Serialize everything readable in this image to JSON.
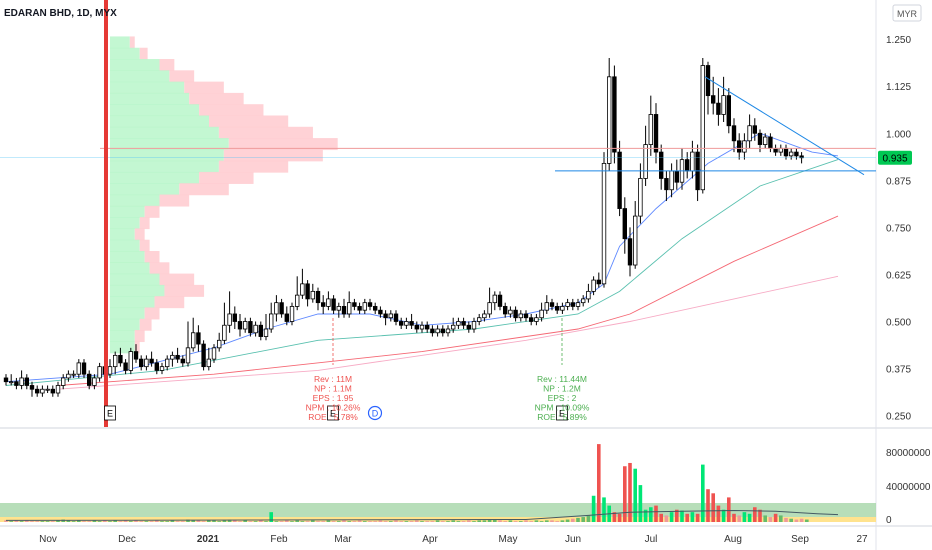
{
  "chart_data": {
    "type": "candlestick",
    "title": "EDARAN BHD, 1D, MYX",
    "currency": "MYR",
    "last_price": "0.935",
    "y_axis": {
      "ticks": [
        "1.250",
        "1.125",
        "1.000",
        "0.875",
        "0.750",
        "0.625",
        "0.500",
        "0.375",
        "0.250"
      ],
      "range": [
        0.225,
        1.285
      ]
    },
    "x_axis": {
      "ticks": [
        "Nov",
        "Dec",
        "2021",
        "Feb",
        "Mar",
        "Apr",
        "May",
        "Jun",
        "Jul",
        "Aug",
        "Sep",
        "27"
      ]
    },
    "volume_axis": {
      "ticks": [
        "80000000",
        "40000000",
        "0"
      ]
    },
    "candles": [
      [
        0.35,
        0.34,
        0.36,
        0.33
      ],
      [
        0.34,
        0.34,
        0.36,
        0.33
      ],
      [
        0.34,
        0.33,
        0.35,
        0.32
      ],
      [
        0.33,
        0.35,
        0.37,
        0.32
      ],
      [
        0.35,
        0.33,
        0.36,
        0.32
      ],
      [
        0.33,
        0.32,
        0.34,
        0.3
      ],
      [
        0.32,
        0.31,
        0.33,
        0.3
      ],
      [
        0.31,
        0.32,
        0.33,
        0.3
      ],
      [
        0.32,
        0.32,
        0.33,
        0.31
      ],
      [
        0.32,
        0.31,
        0.33,
        0.3
      ],
      [
        0.31,
        0.33,
        0.34,
        0.3
      ],
      [
        0.33,
        0.35,
        0.36,
        0.32
      ],
      [
        0.35,
        0.36,
        0.37,
        0.34
      ],
      [
        0.36,
        0.36,
        0.37,
        0.35
      ],
      [
        0.36,
        0.39,
        0.4,
        0.35
      ],
      [
        0.39,
        0.36,
        0.4,
        0.35
      ],
      [
        0.36,
        0.33,
        0.37,
        0.32
      ],
      [
        0.33,
        0.35,
        0.36,
        0.32
      ],
      [
        0.35,
        0.38,
        0.39,
        0.34
      ],
      [
        0.38,
        0.36,
        0.4,
        0.35
      ],
      [
        0.36,
        0.38,
        0.4,
        0.35
      ],
      [
        0.38,
        0.41,
        0.42,
        0.36
      ],
      [
        0.41,
        0.39,
        0.43,
        0.38
      ],
      [
        0.39,
        0.37,
        0.4,
        0.36
      ],
      [
        0.37,
        0.42,
        0.43,
        0.36
      ],
      [
        0.42,
        0.4,
        0.44,
        0.39
      ],
      [
        0.4,
        0.38,
        0.41,
        0.37
      ],
      [
        0.38,
        0.4,
        0.41,
        0.37
      ],
      [
        0.4,
        0.39,
        0.42,
        0.38
      ],
      [
        0.39,
        0.37,
        0.4,
        0.36
      ],
      [
        0.37,
        0.38,
        0.39,
        0.36
      ],
      [
        0.38,
        0.4,
        0.41,
        0.37
      ],
      [
        0.4,
        0.41,
        0.42,
        0.38
      ],
      [
        0.41,
        0.4,
        0.43,
        0.39
      ],
      [
        0.4,
        0.39,
        0.41,
        0.38
      ],
      [
        0.39,
        0.43,
        0.5,
        0.38
      ],
      [
        0.43,
        0.47,
        0.51,
        0.42
      ],
      [
        0.47,
        0.44,
        0.49,
        0.42
      ],
      [
        0.44,
        0.38,
        0.45,
        0.37
      ],
      [
        0.38,
        0.4,
        0.43,
        0.37
      ],
      [
        0.4,
        0.43,
        0.44,
        0.39
      ],
      [
        0.43,
        0.45,
        0.47,
        0.42
      ],
      [
        0.45,
        0.49,
        0.55,
        0.44
      ],
      [
        0.49,
        0.52,
        0.58,
        0.47
      ],
      [
        0.52,
        0.5,
        0.54,
        0.48
      ],
      [
        0.5,
        0.48,
        0.52,
        0.46
      ],
      [
        0.48,
        0.5,
        0.51,
        0.47
      ],
      [
        0.5,
        0.47,
        0.51,
        0.46
      ],
      [
        0.47,
        0.49,
        0.5,
        0.46
      ],
      [
        0.49,
        0.46,
        0.5,
        0.45
      ],
      [
        0.46,
        0.48,
        0.52,
        0.45
      ],
      [
        0.48,
        0.52,
        0.55,
        0.47
      ],
      [
        0.52,
        0.55,
        0.57,
        0.5
      ],
      [
        0.55,
        0.52,
        0.56,
        0.51
      ],
      [
        0.52,
        0.5,
        0.54,
        0.49
      ],
      [
        0.5,
        0.54,
        0.55,
        0.49
      ],
      [
        0.54,
        0.57,
        0.62,
        0.53
      ],
      [
        0.57,
        0.6,
        0.64,
        0.56
      ],
      [
        0.6,
        0.56,
        0.61,
        0.54
      ],
      [
        0.56,
        0.58,
        0.6,
        0.55
      ],
      [
        0.58,
        0.55,
        0.59,
        0.53
      ],
      [
        0.55,
        0.54,
        0.57,
        0.52
      ],
      [
        0.54,
        0.56,
        0.58,
        0.53
      ],
      [
        0.56,
        0.53,
        0.57,
        0.52
      ],
      [
        0.53,
        0.54,
        0.55,
        0.51
      ],
      [
        0.54,
        0.52,
        0.56,
        0.51
      ],
      [
        0.52,
        0.55,
        0.58,
        0.51
      ],
      [
        0.55,
        0.54,
        0.56,
        0.53
      ],
      [
        0.54,
        0.53,
        0.55,
        0.52
      ],
      [
        0.53,
        0.55,
        0.56,
        0.52
      ],
      [
        0.55,
        0.54,
        0.56,
        0.53
      ],
      [
        0.54,
        0.53,
        0.55,
        0.52
      ],
      [
        0.53,
        0.52,
        0.54,
        0.51
      ],
      [
        0.52,
        0.51,
        0.53,
        0.49
      ],
      [
        0.51,
        0.52,
        0.53,
        0.5
      ],
      [
        0.52,
        0.5,
        0.53,
        0.49
      ],
      [
        0.5,
        0.49,
        0.51,
        0.48
      ],
      [
        0.49,
        0.5,
        0.51,
        0.48
      ],
      [
        0.5,
        0.49,
        0.52,
        0.48
      ],
      [
        0.49,
        0.48,
        0.5,
        0.47
      ],
      [
        0.48,
        0.49,
        0.5,
        0.47
      ],
      [
        0.49,
        0.48,
        0.5,
        0.47
      ],
      [
        0.48,
        0.47,
        0.49,
        0.46
      ],
      [
        0.47,
        0.48,
        0.49,
        0.46
      ],
      [
        0.48,
        0.47,
        0.49,
        0.46
      ],
      [
        0.47,
        0.48,
        0.49,
        0.46
      ],
      [
        0.48,
        0.49,
        0.51,
        0.47
      ],
      [
        0.49,
        0.5,
        0.51,
        0.48
      ],
      [
        0.5,
        0.49,
        0.51,
        0.48
      ],
      [
        0.49,
        0.48,
        0.5,
        0.47
      ],
      [
        0.48,
        0.5,
        0.51,
        0.47
      ],
      [
        0.5,
        0.51,
        0.52,
        0.49
      ],
      [
        0.51,
        0.52,
        0.53,
        0.5
      ],
      [
        0.52,
        0.55,
        0.59,
        0.51
      ],
      [
        0.55,
        0.57,
        0.58,
        0.53
      ],
      [
        0.57,
        0.54,
        0.58,
        0.53
      ],
      [
        0.54,
        0.52,
        0.55,
        0.51
      ],
      [
        0.52,
        0.53,
        0.54,
        0.51
      ],
      [
        0.53,
        0.51,
        0.54,
        0.5
      ],
      [
        0.51,
        0.52,
        0.53,
        0.5
      ],
      [
        0.52,
        0.51,
        0.53,
        0.5
      ],
      [
        0.51,
        0.5,
        0.52,
        0.49
      ],
      [
        0.5,
        0.51,
        0.52,
        0.49
      ],
      [
        0.51,
        0.53,
        0.55,
        0.5
      ],
      [
        0.53,
        0.55,
        0.57,
        0.52
      ],
      [
        0.55,
        0.54,
        0.56,
        0.53
      ],
      [
        0.54,
        0.53,
        0.55,
        0.52
      ],
      [
        0.53,
        0.54,
        0.55,
        0.52
      ],
      [
        0.54,
        0.55,
        0.56,
        0.53
      ],
      [
        0.55,
        0.54,
        0.56,
        0.53
      ],
      [
        0.54,
        0.55,
        0.56,
        0.53
      ],
      [
        0.55,
        0.56,
        0.57,
        0.54
      ],
      [
        0.56,
        0.58,
        0.6,
        0.55
      ],
      [
        0.58,
        0.61,
        0.62,
        0.57
      ],
      [
        0.61,
        0.6,
        0.63,
        0.59
      ],
      [
        0.6,
        0.92,
        0.95,
        0.59
      ],
      [
        0.92,
        1.15,
        1.2,
        0.9
      ],
      [
        1.15,
        0.95,
        1.18,
        0.92
      ],
      [
        0.95,
        0.8,
        0.98,
        0.78
      ],
      [
        0.8,
        0.72,
        0.83,
        0.68
      ],
      [
        0.72,
        0.65,
        0.75,
        0.62
      ],
      [
        0.65,
        0.78,
        0.82,
        0.64
      ],
      [
        0.78,
        0.88,
        0.92,
        0.76
      ],
      [
        0.88,
        0.97,
        1.02,
        0.86
      ],
      [
        0.97,
        1.05,
        1.1,
        0.94
      ],
      [
        1.05,
        0.95,
        1.08,
        0.92
      ],
      [
        0.95,
        0.88,
        0.97,
        0.85
      ],
      [
        0.88,
        0.85,
        0.9,
        0.82
      ],
      [
        0.85,
        0.9,
        0.92,
        0.83
      ],
      [
        0.9,
        0.87,
        0.93,
        0.85
      ],
      [
        0.87,
        0.93,
        0.96,
        0.85
      ],
      [
        0.93,
        0.9,
        0.95,
        0.88
      ],
      [
        0.9,
        0.95,
        0.98,
        0.88
      ],
      [
        0.95,
        0.85,
        0.97,
        0.82
      ],
      [
        0.85,
        1.18,
        1.2,
        0.84
      ],
      [
        1.18,
        1.1,
        1.19,
        1.05
      ],
      [
        1.1,
        1.08,
        1.15,
        1.05
      ],
      [
        1.08,
        1.05,
        1.12,
        1.02
      ],
      [
        1.05,
        1.1,
        1.15,
        1.03
      ],
      [
        1.1,
        1.02,
        1.12,
        1.0
      ],
      [
        1.02,
        0.98,
        1.04,
        0.95
      ],
      [
        0.98,
        0.95,
        1.0,
        0.93
      ],
      [
        0.95,
        0.98,
        1.0,
        0.93
      ],
      [
        0.98,
        1.02,
        1.05,
        0.96
      ],
      [
        1.02,
        1.0,
        1.04,
        0.98
      ],
      [
        1.0,
        0.97,
        1.01,
        0.95
      ],
      [
        0.97,
        0.99,
        1.0,
        0.96
      ],
      [
        0.99,
        0.96,
        1.0,
        0.95
      ],
      [
        0.96,
        0.95,
        0.97,
        0.94
      ],
      [
        0.95,
        0.96,
        0.97,
        0.94
      ],
      [
        0.96,
        0.94,
        0.97,
        0.93
      ],
      [
        0.94,
        0.95,
        0.96,
        0.93
      ],
      [
        0.95,
        0.94,
        0.96,
        0.93
      ],
      [
        0.94,
        0.935,
        0.95,
        0.92
      ]
    ],
    "ma_series": [
      {
        "color": "#2962ff",
        "values": [
          [
            0,
            0.34
          ],
          [
            20,
            0.36
          ],
          [
            40,
            0.43
          ],
          [
            50,
            0.48
          ],
          [
            60,
            0.52
          ],
          [
            70,
            0.52
          ],
          [
            80,
            0.49
          ],
          [
            90,
            0.5
          ],
          [
            100,
            0.52
          ],
          [
            110,
            0.55
          ],
          [
            115,
            0.6
          ],
          [
            118,
            0.7
          ],
          [
            125,
            0.8
          ],
          [
            135,
            0.92
          ],
          [
            145,
            1.0
          ],
          [
            155,
            0.95
          ],
          [
            160,
            0.94
          ]
        ]
      },
      {
        "color": "#22ab94",
        "values": [
          [
            0,
            0.33
          ],
          [
            30,
            0.37
          ],
          [
            60,
            0.45
          ],
          [
            90,
            0.48
          ],
          [
            110,
            0.52
          ],
          [
            118,
            0.58
          ],
          [
            130,
            0.72
          ],
          [
            145,
            0.86
          ],
          [
            160,
            0.93
          ]
        ]
      },
      {
        "color": "#f23645",
        "values": [
          [
            10,
            0.33
          ],
          [
            40,
            0.36
          ],
          [
            80,
            0.42
          ],
          [
            110,
            0.48
          ],
          [
            120,
            0.52
          ],
          [
            140,
            0.66
          ],
          [
            160,
            0.78
          ]
        ]
      },
      {
        "color": "#f48fb1",
        "values": [
          [
            10,
            0.32
          ],
          [
            60,
            0.37
          ],
          [
            100,
            0.45
          ],
          [
            120,
            0.5
          ],
          [
            140,
            0.56
          ],
          [
            160,
            0.62
          ]
        ]
      }
    ],
    "volume_profile": [
      {
        "price": 1.24,
        "up": 0.2,
        "down": 0.05
      },
      {
        "price": 1.21,
        "up": 0.3,
        "down": 0.08
      },
      {
        "price": 1.18,
        "up": 0.5,
        "down": 0.15
      },
      {
        "price": 1.15,
        "up": 0.6,
        "down": 0.25
      },
      {
        "price": 1.12,
        "up": 0.75,
        "down": 0.4
      },
      {
        "price": 1.09,
        "up": 0.8,
        "down": 0.55
      },
      {
        "price": 1.06,
        "up": 0.9,
        "down": 0.65
      },
      {
        "price": 1.03,
        "up": 1.0,
        "down": 0.8
      },
      {
        "price": 1.0,
        "up": 1.1,
        "down": 0.95
      },
      {
        "price": 0.97,
        "up": 1.2,
        "down": 1.1
      },
      {
        "price": 0.94,
        "up": 1.15,
        "down": 1.0
      },
      {
        "price": 0.91,
        "up": 1.1,
        "down": 0.7
      },
      {
        "price": 0.88,
        "up": 0.9,
        "down": 0.55
      },
      {
        "price": 0.85,
        "up": 0.7,
        "down": 0.5
      },
      {
        "price": 0.82,
        "up": 0.5,
        "down": 0.3
      },
      {
        "price": 0.79,
        "up": 0.35,
        "down": 0.15
      },
      {
        "price": 0.76,
        "up": 0.3,
        "down": 0.1
      },
      {
        "price": 0.73,
        "up": 0.25,
        "down": 0.1
      },
      {
        "price": 0.7,
        "up": 0.3,
        "down": 0.1
      },
      {
        "price": 0.67,
        "up": 0.35,
        "down": 0.15
      },
      {
        "price": 0.64,
        "up": 0.4,
        "down": 0.2
      },
      {
        "price": 0.61,
        "up": 0.5,
        "down": 0.35
      },
      {
        "price": 0.58,
        "up": 0.55,
        "down": 0.4
      },
      {
        "price": 0.55,
        "up": 0.45,
        "down": 0.3
      },
      {
        "price": 0.52,
        "up": 0.35,
        "down": 0.15
      },
      {
        "price": 0.49,
        "up": 0.3,
        "down": 0.12
      },
      {
        "price": 0.46,
        "up": 0.25,
        "down": 0.1
      },
      {
        "price": 0.43,
        "up": 0.25,
        "down": 0.05
      }
    ],
    "volumes": [
      2,
      1,
      2,
      1,
      2,
      1,
      1,
      1,
      1,
      1,
      2,
      3,
      2,
      1,
      2,
      1,
      1,
      2,
      1,
      2,
      1,
      2,
      1,
      2,
      1,
      2,
      1,
      1,
      1,
      2,
      1,
      1,
      2,
      1,
      1,
      3,
      2,
      2,
      1,
      2,
      2,
      1,
      2,
      3,
      2,
      1,
      2,
      1,
      1,
      2,
      1,
      12,
      1,
      1,
      2,
      1,
      2,
      1,
      1,
      2,
      1,
      1,
      2,
      1,
      1,
      2,
      1,
      1,
      2,
      1,
      1,
      1,
      2,
      1,
      1,
      2,
      1,
      1,
      1,
      2,
      1,
      1,
      1,
      2,
      1,
      1,
      2,
      1,
      1,
      2,
      1,
      2,
      2,
      3,
      3,
      2,
      1,
      2,
      1,
      1,
      2,
      1,
      2,
      1,
      2,
      2,
      1,
      2,
      3,
      4,
      5,
      6,
      8,
      32,
      95,
      30,
      20,
      12,
      10,
      68,
      72,
      65,
      45,
      15,
      18,
      20,
      10,
      8,
      12,
      15,
      14,
      10,
      12,
      10,
      70,
      40,
      35,
      20,
      15,
      30,
      10,
      8,
      12,
      10,
      18,
      15,
      8,
      6,
      10,
      8,
      5,
      4,
      3,
      4,
      3
    ],
    "volume_ma": [
      [
        0,
        2
      ],
      [
        100,
        3
      ],
      [
        112,
        8
      ],
      [
        120,
        12
      ],
      [
        130,
        13
      ],
      [
        140,
        14
      ],
      [
        148,
        13
      ],
      [
        156,
        10
      ],
      [
        160,
        9
      ]
    ],
    "levels": {
      "resistance": 0.96,
      "support": 0.9,
      "last": 0.935
    },
    "trendline": [
      [
        1.15,
        0
      ],
      [
        0.89,
        1
      ]
    ],
    "events": [
      {
        "label": "E"
      },
      {
        "label": "E",
        "details": [
          "Rev : 11M",
          "NP : 1.1M",
          "EPS : 1.95",
          "NPM : 10.26%",
          "ROE : 5.78%"
        ],
        "color": "#ef5350"
      },
      {
        "label": "D"
      },
      {
        "label": "E",
        "details": [
          "Rev : 11.44M",
          "NP : 1.2M",
          "EPS : 2",
          "NPM : 10.09%",
          "ROE : 5.89%"
        ],
        "color": "#4caf50"
      }
    ]
  }
}
